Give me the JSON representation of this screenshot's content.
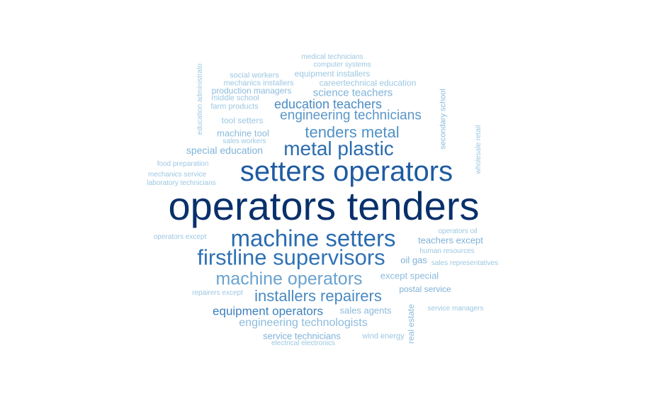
{
  "words": [
    {
      "text": "operators tenders",
      "color": "#08306b"
    },
    {
      "text": "setters operators",
      "color": "#1e5ba0"
    },
    {
      "text": "machine setters",
      "color": "#2a6cb0"
    },
    {
      "text": "firstline supervisors",
      "color": "#2f72b5"
    },
    {
      "text": "metal plastic",
      "color": "#2a6cb0"
    },
    {
      "text": "machine operators",
      "color": "#6aa2cf"
    },
    {
      "text": "tenders metal",
      "color": "#5091c6"
    },
    {
      "text": "installers repairers",
      "color": "#4a8ac2"
    },
    {
      "text": "engineering technicians",
      "color": "#5a97c9"
    },
    {
      "text": "education teachers",
      "color": "#4b8bc3"
    },
    {
      "text": "equipment operators",
      "color": "#3d7fbd"
    },
    {
      "text": "engineering technologists",
      "color": "#8cbbdc"
    },
    {
      "text": "science teachers",
      "color": "#7fb2d8"
    },
    {
      "text": "special education",
      "color": "#7fb2d8"
    },
    {
      "text": "service technicians",
      "color": "#7fb2d8"
    },
    {
      "text": "except special",
      "color": "#8cbbdc"
    },
    {
      "text": "teachers except",
      "color": "#7fb2d8"
    },
    {
      "text": "sales agents",
      "color": "#8cbbdc"
    },
    {
      "text": "machine tool",
      "color": "#8cbbdc"
    },
    {
      "text": "oil gas",
      "color": "#7fb2d8"
    },
    {
      "text": "postal service",
      "color": "#7fb2d8"
    },
    {
      "text": "production managers",
      "color": "#8cbbdc"
    },
    {
      "text": "careertechnical education",
      "color": "#9cc7e2"
    },
    {
      "text": "equipment installers",
      "color": "#9cc7e2"
    },
    {
      "text": "tool setters",
      "color": "#9cc7e2"
    },
    {
      "text": "social workers",
      "color": "#9cc7e2"
    },
    {
      "text": "wind energy",
      "color": "#9cc7e2"
    },
    {
      "text": "mechanics installers",
      "color": "#9cc7e2"
    },
    {
      "text": "middle school",
      "color": "#9cc7e2"
    },
    {
      "text": "farm products",
      "color": "#9cc7e2"
    },
    {
      "text": "computer systems",
      "color": "#9cc7e2"
    },
    {
      "text": "medical technicians",
      "color": "#9cc7e2"
    },
    {
      "text": "sales workers",
      "color": "#9cc7e2"
    },
    {
      "text": "food preparation",
      "color": "#9cc7e2"
    },
    {
      "text": "mechanics service",
      "color": "#9cc7e2"
    },
    {
      "text": "laboratory technicians",
      "color": "#9cc7e2"
    },
    {
      "text": "operators except",
      "color": "#9cc7e2"
    },
    {
      "text": "repairers except",
      "color": "#9cc7e2"
    },
    {
      "text": "electrical electronics",
      "color": "#9cc7e2"
    },
    {
      "text": "operators oil",
      "color": "#9cc7e2"
    },
    {
      "text": "human resources",
      "color": "#9cc7e2"
    },
    {
      "text": "sales representatives",
      "color": "#9cc7e2"
    },
    {
      "text": "service managers",
      "color": "#9cc7e2"
    },
    {
      "text": "education administrato",
      "color": "#9cc7e2",
      "vertical": true
    },
    {
      "text": "secondary school",
      "color": "#8cbbdc",
      "vertical": true
    },
    {
      "text": "wholesale retail",
      "color": "#9cc7e2",
      "vertical": true
    },
    {
      "text": "real estate",
      "color": "#8cbbdc",
      "vertical": true
    }
  ]
}
